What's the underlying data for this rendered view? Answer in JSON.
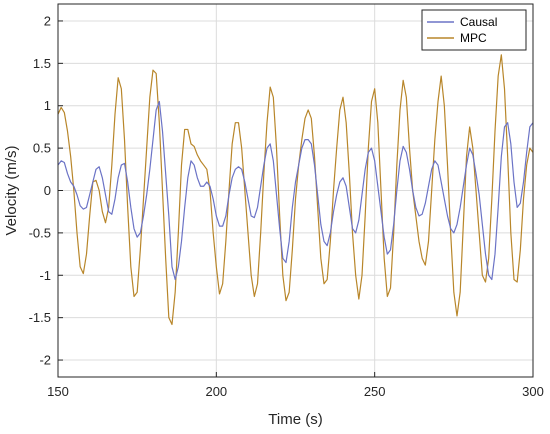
{
  "chart_data": {
    "type": "line",
    "title": "",
    "xlabel": "Time (s)",
    "ylabel": "Velocity (m/s)",
    "xlim": [
      150,
      300
    ],
    "ylim": [
      -2.2,
      2.2
    ],
    "xticks": [
      150,
      200,
      250,
      300
    ],
    "yticks": [
      2,
      1.5,
      1,
      0.5,
      0,
      -0.5,
      -1,
      -1.5,
      -2
    ],
    "ytick_labels": [
      "2",
      "1.5",
      "1",
      "0.5",
      "0",
      "-0.5",
      "-1",
      "-1.5",
      "-2"
    ],
    "grid": true,
    "legend_position": "top-right",
    "series": [
      {
        "name": "Causal",
        "color": "#6b73c6",
        "points": [
          [
            150,
            0.3
          ],
          [
            151,
            0.35
          ],
          [
            152,
            0.33
          ],
          [
            153,
            0.2
          ],
          [
            154,
            0.1
          ],
          [
            155,
            0.05
          ],
          [
            156,
            -0.05
          ],
          [
            157,
            -0.18
          ],
          [
            158,
            -0.22
          ],
          [
            159,
            -0.2
          ],
          [
            160,
            -0.05
          ],
          [
            161,
            0.1
          ],
          [
            162,
            0.25
          ],
          [
            163,
            0.28
          ],
          [
            164,
            0.15
          ],
          [
            165,
            -0.05
          ],
          [
            166,
            -0.25
          ],
          [
            167,
            -0.28
          ],
          [
            168,
            -0.1
          ],
          [
            169,
            0.15
          ],
          [
            170,
            0.3
          ],
          [
            171,
            0.32
          ],
          [
            172,
            0.1
          ],
          [
            173,
            -0.2
          ],
          [
            174,
            -0.45
          ],
          [
            175,
            -0.55
          ],
          [
            176,
            -0.5
          ],
          [
            177,
            -0.3
          ],
          [
            178,
            -0.05
          ],
          [
            179,
            0.25
          ],
          [
            180,
            0.6
          ],
          [
            181,
            0.95
          ],
          [
            182,
            1.05
          ],
          [
            183,
            0.7
          ],
          [
            184,
            0.2
          ],
          [
            185,
            -0.3
          ],
          [
            186,
            -0.9
          ],
          [
            187,
            -1.05
          ],
          [
            188,
            -0.9
          ],
          [
            189,
            -0.6
          ],
          [
            190,
            -0.2
          ],
          [
            191,
            0.15
          ],
          [
            192,
            0.35
          ],
          [
            193,
            0.3
          ],
          [
            194,
            0.15
          ],
          [
            195,
            0.05
          ],
          [
            196,
            0.05
          ],
          [
            197,
            0.1
          ],
          [
            198,
            0.05
          ],
          [
            199,
            -0.1
          ],
          [
            200,
            -0.3
          ],
          [
            201,
            -0.42
          ],
          [
            202,
            -0.42
          ],
          [
            203,
            -0.3
          ],
          [
            204,
            -0.05
          ],
          [
            205,
            0.15
          ],
          [
            206,
            0.25
          ],
          [
            207,
            0.28
          ],
          [
            208,
            0.25
          ],
          [
            209,
            0.1
          ],
          [
            210,
            -0.1
          ],
          [
            211,
            -0.3
          ],
          [
            212,
            -0.32
          ],
          [
            213,
            -0.2
          ],
          [
            214,
            0.05
          ],
          [
            215,
            0.3
          ],
          [
            216,
            0.5
          ],
          [
            217,
            0.55
          ],
          [
            218,
            0.35
          ],
          [
            219,
            -0.05
          ],
          [
            220,
            -0.45
          ],
          [
            221,
            -0.8
          ],
          [
            222,
            -0.85
          ],
          [
            223,
            -0.6
          ],
          [
            224,
            -0.2
          ],
          [
            225,
            0.1
          ],
          [
            226,
            0.3
          ],
          [
            227,
            0.5
          ],
          [
            228,
            0.6
          ],
          [
            229,
            0.6
          ],
          [
            230,
            0.55
          ],
          [
            231,
            0.3
          ],
          [
            232,
            -0.05
          ],
          [
            233,
            -0.4
          ],
          [
            234,
            -0.6
          ],
          [
            235,
            -0.65
          ],
          [
            236,
            -0.5
          ],
          [
            237,
            -0.25
          ],
          [
            238,
            -0.05
          ],
          [
            239,
            0.1
          ],
          [
            240,
            0.15
          ],
          [
            241,
            0.05
          ],
          [
            242,
            -0.2
          ],
          [
            243,
            -0.45
          ],
          [
            244,
            -0.5
          ],
          [
            245,
            -0.35
          ],
          [
            246,
            -0.05
          ],
          [
            247,
            0.25
          ],
          [
            248,
            0.45
          ],
          [
            249,
            0.5
          ],
          [
            250,
            0.35
          ],
          [
            251,
            0.05
          ],
          [
            252,
            -0.25
          ],
          [
            253,
            -0.55
          ],
          [
            254,
            -0.75
          ],
          [
            255,
            -0.7
          ],
          [
            256,
            -0.4
          ],
          [
            257,
            0.0
          ],
          [
            258,
            0.35
          ],
          [
            259,
            0.52
          ],
          [
            260,
            0.45
          ],
          [
            261,
            0.25
          ],
          [
            262,
            0.0
          ],
          [
            263,
            -0.2
          ],
          [
            264,
            -0.3
          ],
          [
            265,
            -0.28
          ],
          [
            266,
            -0.15
          ],
          [
            267,
            0.05
          ],
          [
            268,
            0.25
          ],
          [
            269,
            0.35
          ],
          [
            270,
            0.3
          ],
          [
            271,
            0.1
          ],
          [
            272,
            -0.1
          ],
          [
            273,
            -0.3
          ],
          [
            274,
            -0.45
          ],
          [
            275,
            -0.5
          ],
          [
            276,
            -0.4
          ],
          [
            277,
            -0.2
          ],
          [
            278,
            0.05
          ],
          [
            279,
            0.3
          ],
          [
            280,
            0.5
          ],
          [
            281,
            0.42
          ],
          [
            282,
            0.2
          ],
          [
            283,
            -0.05
          ],
          [
            284,
            -0.4
          ],
          [
            285,
            -0.75
          ],
          [
            286,
            -1.0
          ],
          [
            287,
            -1.05
          ],
          [
            288,
            -0.75
          ],
          [
            289,
            -0.2
          ],
          [
            290,
            0.4
          ],
          [
            291,
            0.75
          ],
          [
            292,
            0.8
          ],
          [
            293,
            0.55
          ],
          [
            294,
            0.1
          ],
          [
            295,
            -0.2
          ],
          [
            296,
            -0.15
          ],
          [
            297,
            0.1
          ],
          [
            298,
            0.45
          ],
          [
            299,
            0.75
          ],
          [
            300,
            0.8
          ]
        ]
      },
      {
        "name": "MPC",
        "color": "#b8862a",
        "points": [
          [
            150,
            0.9
          ],
          [
            151,
            0.98
          ],
          [
            152,
            0.92
          ],
          [
            153,
            0.7
          ],
          [
            154,
            0.4
          ],
          [
            155,
            0.0
          ],
          [
            156,
            -0.5
          ],
          [
            157,
            -0.9
          ],
          [
            158,
            -0.98
          ],
          [
            159,
            -0.75
          ],
          [
            160,
            -0.3
          ],
          [
            161,
            0.1
          ],
          [
            162,
            0.12
          ],
          [
            163,
            0.0
          ],
          [
            164,
            -0.25
          ],
          [
            165,
            -0.38
          ],
          [
            166,
            -0.2
          ],
          [
            167,
            0.3
          ],
          [
            168,
            0.9
          ],
          [
            169,
            1.33
          ],
          [
            170,
            1.2
          ],
          [
            171,
            0.6
          ],
          [
            172,
            -0.2
          ],
          [
            173,
            -0.9
          ],
          [
            174,
            -1.25
          ],
          [
            175,
            -1.2
          ],
          [
            176,
            -0.7
          ],
          [
            177,
            -0.1
          ],
          [
            178,
            0.5
          ],
          [
            179,
            1.1
          ],
          [
            180,
            1.42
          ],
          [
            181,
            1.38
          ],
          [
            182,
            0.8
          ],
          [
            183,
            0.0
          ],
          [
            184,
            -0.8
          ],
          [
            185,
            -1.5
          ],
          [
            186,
            -1.58
          ],
          [
            187,
            -1.2
          ],
          [
            188,
            -0.5
          ],
          [
            189,
            0.3
          ],
          [
            190,
            0.72
          ],
          [
            191,
            0.72
          ],
          [
            192,
            0.55
          ],
          [
            193,
            0.52
          ],
          [
            194,
            0.42
          ],
          [
            195,
            0.35
          ],
          [
            196,
            0.3
          ],
          [
            197,
            0.25
          ],
          [
            198,
            0.0
          ],
          [
            199,
            -0.5
          ],
          [
            200,
            -0.9
          ],
          [
            201,
            -1.22
          ],
          [
            202,
            -1.1
          ],
          [
            203,
            -0.6
          ],
          [
            204,
            0.0
          ],
          [
            205,
            0.55
          ],
          [
            206,
            0.8
          ],
          [
            207,
            0.8
          ],
          [
            208,
            0.5
          ],
          [
            209,
            0.0
          ],
          [
            210,
            -0.5
          ],
          [
            211,
            -1.0
          ],
          [
            212,
            -1.25
          ],
          [
            213,
            -1.1
          ],
          [
            214,
            -0.5
          ],
          [
            215,
            0.2
          ],
          [
            216,
            0.8
          ],
          [
            217,
            1.22
          ],
          [
            218,
            1.1
          ],
          [
            219,
            0.5
          ],
          [
            220,
            -0.3
          ],
          [
            221,
            -1.0
          ],
          [
            222,
            -1.3
          ],
          [
            223,
            -1.2
          ],
          [
            224,
            -0.7
          ],
          [
            225,
            -0.1
          ],
          [
            226,
            0.3
          ],
          [
            227,
            0.6
          ],
          [
            228,
            0.85
          ],
          [
            229,
            0.95
          ],
          [
            230,
            0.85
          ],
          [
            231,
            0.4
          ],
          [
            232,
            -0.2
          ],
          [
            233,
            -0.8
          ],
          [
            234,
            -1.1
          ],
          [
            235,
            -1.05
          ],
          [
            236,
            -0.6
          ],
          [
            237,
            0.0
          ],
          [
            238,
            0.5
          ],
          [
            239,
            0.95
          ],
          [
            240,
            1.1
          ],
          [
            241,
            0.8
          ],
          [
            242,
            0.2
          ],
          [
            243,
            -0.5
          ],
          [
            244,
            -1.0
          ],
          [
            245,
            -1.28
          ],
          [
            246,
            -1.0
          ],
          [
            247,
            -0.3
          ],
          [
            248,
            0.5
          ],
          [
            249,
            1.05
          ],
          [
            250,
            1.2
          ],
          [
            251,
            0.8
          ],
          [
            252,
            0.0
          ],
          [
            253,
            -0.8
          ],
          [
            254,
            -1.25
          ],
          [
            255,
            -1.15
          ],
          [
            256,
            -0.5
          ],
          [
            257,
            0.3
          ],
          [
            258,
            0.95
          ],
          [
            259,
            1.3
          ],
          [
            260,
            1.1
          ],
          [
            261,
            0.5
          ],
          [
            262,
            0.0
          ],
          [
            263,
            -0.3
          ],
          [
            264,
            -0.6
          ],
          [
            265,
            -0.8
          ],
          [
            266,
            -0.88
          ],
          [
            267,
            -0.6
          ],
          [
            268,
            0.0
          ],
          [
            269,
            0.6
          ],
          [
            270,
            1.05
          ],
          [
            271,
            1.35
          ],
          [
            272,
            1.0
          ],
          [
            273,
            0.3
          ],
          [
            274,
            -0.5
          ],
          [
            275,
            -1.2
          ],
          [
            276,
            -1.48
          ],
          [
            277,
            -1.2
          ],
          [
            278,
            -0.4
          ],
          [
            279,
            0.4
          ],
          [
            280,
            0.75
          ],
          [
            281,
            0.5
          ],
          [
            282,
            0.0
          ],
          [
            283,
            -0.5
          ],
          [
            284,
            -1.0
          ],
          [
            285,
            -1.08
          ],
          [
            286,
            -0.8
          ],
          [
            287,
            -0.1
          ],
          [
            288,
            0.7
          ],
          [
            289,
            1.35
          ],
          [
            290,
            1.6
          ],
          [
            291,
            1.2
          ],
          [
            292,
            0.4
          ],
          [
            293,
            -0.5
          ],
          [
            294,
            -1.05
          ],
          [
            295,
            -1.08
          ],
          [
            296,
            -0.7
          ],
          [
            297,
            -0.1
          ],
          [
            298,
            0.3
          ],
          [
            299,
            0.5
          ],
          [
            300,
            0.45
          ]
        ]
      }
    ]
  }
}
